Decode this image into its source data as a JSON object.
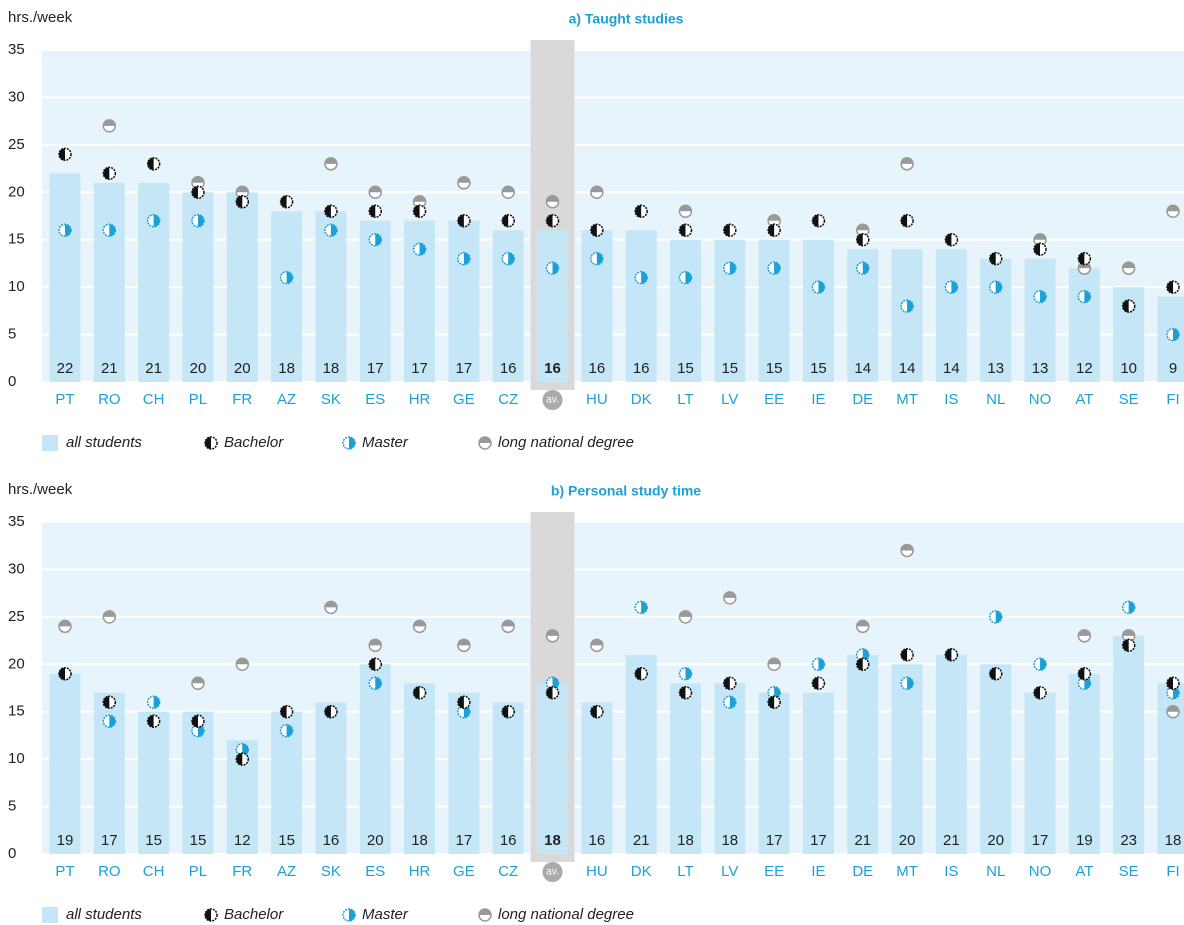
{
  "chart_data": [
    {
      "type": "bar",
      "title": "a) Taught studies",
      "y_label": "hrs./week",
      "highlight": "av.",
      "categories": [
        "PT",
        "RO",
        "CH",
        "PL",
        "FR",
        "AZ",
        "SK",
        "ES",
        "HR",
        "GE",
        "CZ",
        "av.",
        "HU",
        "DK",
        "LT",
        "LV",
        "EE",
        "IE",
        "DE",
        "MT",
        "IS",
        "NL",
        "NO",
        "AT",
        "SE",
        "FI"
      ],
      "ylim": [
        0,
        35
      ],
      "yticks": [
        0,
        5,
        10,
        15,
        20,
        25,
        30,
        35
      ],
      "grid": true,
      "series": [
        {
          "name": "all students",
          "color": "#c5e6f7",
          "values": [
            22,
            21,
            21,
            20,
            20,
            18,
            18,
            17,
            17,
            17,
            16,
            16,
            16,
            16,
            15,
            15,
            15,
            15,
            14,
            14,
            14,
            13,
            13,
            12,
            10,
            9
          ]
        },
        {
          "name": "Bachelor",
          "color": "#111111",
          "values": [
            24,
            22,
            23,
            20,
            19,
            19,
            18,
            18,
            18,
            17,
            17,
            17,
            16,
            18,
            16,
            16,
            16,
            17,
            15,
            17,
            15,
            13,
            14,
            13,
            8,
            10
          ]
        },
        {
          "name": "Master",
          "color": "#1ba1d6",
          "values": [
            16,
            16,
            17,
            17,
            19,
            11,
            16,
            15,
            14,
            13,
            13,
            12,
            13,
            11,
            11,
            12,
            12,
            10,
            12,
            8,
            10,
            10,
            9,
            9,
            8,
            5
          ]
        },
        {
          "name": "long national degree",
          "color": "#999999",
          "values": [
            null,
            27,
            null,
            21,
            20,
            null,
            23,
            20,
            19,
            21,
            20,
            19,
            20,
            null,
            18,
            null,
            17,
            null,
            16,
            23,
            null,
            null,
            15,
            12,
            12,
            18
          ]
        }
      ]
    },
    {
      "type": "bar",
      "title": "b) Personal study time",
      "y_label": "hrs./week",
      "highlight": "av.",
      "categories": [
        "PT",
        "RO",
        "CH",
        "PL",
        "FR",
        "AZ",
        "SK",
        "ES",
        "HR",
        "GE",
        "CZ",
        "av.",
        "HU",
        "DK",
        "LT",
        "LV",
        "EE",
        "IE",
        "DE",
        "MT",
        "IS",
        "NL",
        "NO",
        "AT",
        "SE",
        "FI"
      ],
      "ylim": [
        0,
        35
      ],
      "yticks": [
        0,
        5,
        10,
        15,
        20,
        25,
        30,
        35
      ],
      "grid": true,
      "series": [
        {
          "name": "all students",
          "color": "#c5e6f7",
          "values": [
            19,
            17,
            15,
            15,
            12,
            15,
            16,
            20,
            18,
            17,
            16,
            18,
            16,
            21,
            18,
            18,
            17,
            17,
            21,
            20,
            21,
            20,
            17,
            19,
            23,
            18
          ]
        },
        {
          "name": "Bachelor",
          "color": "#111111",
          "values": [
            19,
            16,
            14,
            14,
            10,
            15,
            15,
            20,
            17,
            16,
            15,
            17,
            15,
            19,
            17,
            18,
            16,
            18,
            20,
            21,
            21,
            19,
            17,
            19,
            22,
            18
          ]
        },
        {
          "name": "Master",
          "color": "#1ba1d6",
          "values": [
            19,
            14,
            16,
            13,
            11,
            13,
            15,
            18,
            17,
            15,
            15,
            18,
            15,
            26,
            19,
            16,
            17,
            20,
            21,
            18,
            21,
            25,
            20,
            18,
            26,
            17
          ]
        },
        {
          "name": "long national degree",
          "color": "#999999",
          "values": [
            24,
            25,
            null,
            18,
            20,
            null,
            26,
            22,
            24,
            22,
            24,
            23,
            22,
            null,
            25,
            27,
            20,
            null,
            24,
            32,
            null,
            null,
            null,
            23,
            23,
            15
          ]
        }
      ]
    }
  ]
}
